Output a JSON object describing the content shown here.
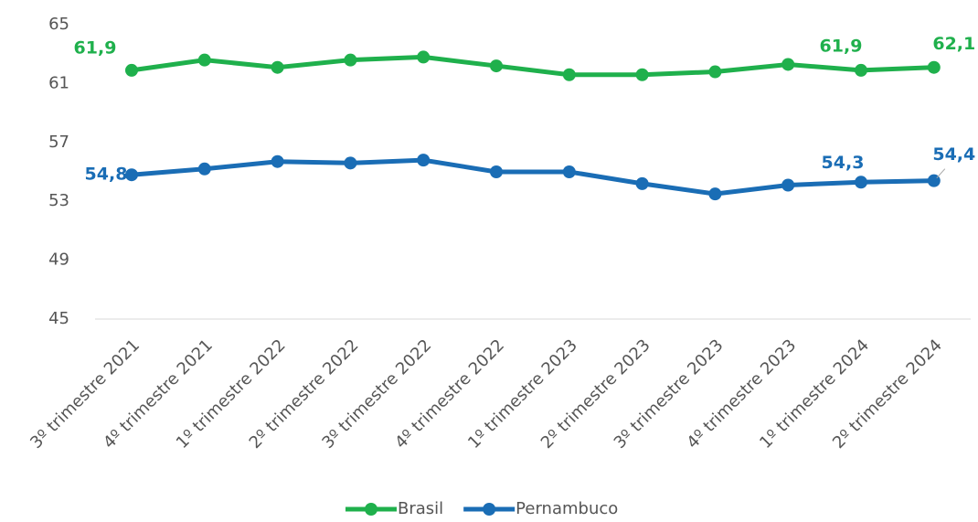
{
  "chart_data": {
    "type": "line",
    "categories": [
      "3º trimestre 2021",
      "4º trimestre 2021",
      "1º trimestre 2022",
      "2º trimestre 2022",
      "3º trimestre 2022",
      "4º trimestre 2022",
      "1º trimestre 2023",
      "2º trimestre 2023",
      "3º trimestre 2023",
      "4º trimestre 2023",
      "1º trimestre 2024",
      "2º trimestre 2024"
    ],
    "series": [
      {
        "name": "Brasil",
        "color": "#1fb04c",
        "values": [
          61.9,
          62.6,
          62.1,
          62.6,
          62.8,
          62.2,
          61.6,
          61.6,
          61.8,
          62.3,
          61.9,
          62.1
        ],
        "value_labels": [
          "61,9",
          null,
          null,
          null,
          null,
          null,
          null,
          null,
          null,
          null,
          "61,9",
          "62,1"
        ]
      },
      {
        "name": "Pernambuco",
        "color": "#1a6db5",
        "values": [
          54.8,
          55.2,
          55.7,
          55.6,
          55.8,
          55.0,
          55.0,
          54.2,
          53.5,
          54.1,
          54.3,
          54.4
        ],
        "value_labels": [
          "54,8",
          null,
          null,
          null,
          null,
          null,
          null,
          null,
          null,
          null,
          "54,3",
          "54,4"
        ]
      }
    ],
    "ylim": [
      45,
      65
    ],
    "yticks": [
      45,
      49,
      53,
      57,
      61,
      65
    ],
    "legend": "bottom"
  }
}
